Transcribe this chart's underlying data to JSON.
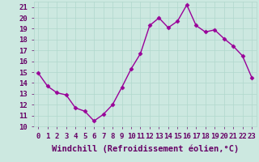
{
  "x": [
    0,
    1,
    2,
    3,
    4,
    5,
    6,
    7,
    8,
    9,
    10,
    11,
    12,
    13,
    14,
    15,
    16,
    17,
    18,
    19,
    20,
    21,
    22,
    23
  ],
  "y": [
    14.9,
    13.7,
    13.1,
    12.9,
    11.7,
    11.4,
    10.5,
    11.1,
    12.0,
    13.6,
    15.3,
    16.7,
    19.3,
    20.0,
    19.1,
    19.7,
    21.2,
    19.3,
    18.7,
    18.9,
    18.1,
    17.4,
    16.5,
    14.5
  ],
  "line_color": "#990099",
  "marker": "D",
  "marker_size": 2.5,
  "line_width": 1.0,
  "xlabel": "Windchill (Refroidissement éolien,°C)",
  "xlabel_fontsize": 7.5,
  "ylim": [
    10,
    21.5
  ],
  "xlim": [
    -0.5,
    23.5
  ],
  "yticks": [
    10,
    11,
    12,
    13,
    14,
    15,
    16,
    17,
    18,
    19,
    20,
    21
  ],
  "xticks": [
    0,
    1,
    2,
    3,
    4,
    5,
    6,
    7,
    8,
    9,
    10,
    11,
    12,
    13,
    14,
    15,
    16,
    17,
    18,
    19,
    20,
    21,
    22,
    23
  ],
  "grid_color": "#b0d8cc",
  "bg_color": "#cce8e0",
  "tick_fontsize": 6.5,
  "tick_color": "#660066"
}
